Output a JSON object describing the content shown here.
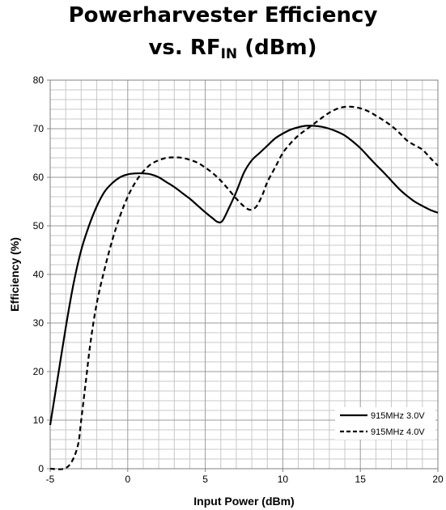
{
  "chart_data": {
    "type": "line",
    "title_line1": "Powerharvester Efficiency",
    "title_line2_main": "vs. RF",
    "title_line2_sub": "IN",
    "title_line2_tail": " (dBm)",
    "xlabel": "Input Power (dBm)",
    "ylabel": "Efficiency (%)",
    "xlim": [
      -5,
      20
    ],
    "ylim": [
      0,
      80
    ],
    "x_ticks": [
      -5,
      0,
      5,
      10,
      15,
      20
    ],
    "y_ticks": [
      0,
      10,
      20,
      30,
      40,
      50,
      60,
      70,
      80
    ],
    "grid": true,
    "legend_position": "bottom-right",
    "series": [
      {
        "name": "915MHz 3.0V",
        "style": "solid",
        "color": "#000000",
        "points": [
          [
            -5,
            9
          ],
          [
            -4.5,
            19
          ],
          [
            -4,
            29
          ],
          [
            -3.5,
            38
          ],
          [
            -3,
            45
          ],
          [
            -2.5,
            50
          ],
          [
            -2,
            54
          ],
          [
            -1.5,
            57
          ],
          [
            -1,
            58.8
          ],
          [
            -0.5,
            60
          ],
          [
            0,
            60.6
          ],
          [
            0.5,
            60.8
          ],
          [
            1,
            60.8
          ],
          [
            1.5,
            60.6
          ],
          [
            2,
            60
          ],
          [
            2.5,
            59
          ],
          [
            3,
            58
          ],
          [
            3.5,
            56.8
          ],
          [
            4,
            55.6
          ],
          [
            4.5,
            54.2
          ],
          [
            5,
            52.8
          ],
          [
            5.5,
            51.5
          ],
          [
            5.8,
            50.8
          ],
          [
            6.1,
            51
          ],
          [
            6.5,
            53.5
          ],
          [
            7,
            57
          ],
          [
            7.5,
            61
          ],
          [
            8,
            63.5
          ],
          [
            8.5,
            65
          ],
          [
            9,
            66.5
          ],
          [
            9.5,
            68
          ],
          [
            10,
            69
          ],
          [
            10.5,
            69.8
          ],
          [
            11,
            70.3
          ],
          [
            11.5,
            70.6
          ],
          [
            12,
            70.6
          ],
          [
            12.5,
            70.4
          ],
          [
            13,
            70
          ],
          [
            13.5,
            69.4
          ],
          [
            14,
            68.6
          ],
          [
            14.5,
            67.4
          ],
          [
            15,
            66
          ],
          [
            15.5,
            64.3
          ],
          [
            16,
            62.6
          ],
          [
            16.5,
            61
          ],
          [
            17,
            59.3
          ],
          [
            17.5,
            57.6
          ],
          [
            18,
            56.2
          ],
          [
            18.5,
            55
          ],
          [
            19,
            54.1
          ],
          [
            19.5,
            53.3
          ],
          [
            20,
            52.7
          ]
        ]
      },
      {
        "name": "915MHz 4.0V",
        "style": "dashed",
        "color": "#000000",
        "points": [
          [
            -5,
            0
          ],
          [
            -4.1,
            0
          ],
          [
            -3.6,
            1.5
          ],
          [
            -3.2,
            5
          ],
          [
            -3,
            10
          ],
          [
            -2.7,
            18
          ],
          [
            -2.4,
            26
          ],
          [
            -2,
            34
          ],
          [
            -1.5,
            41
          ],
          [
            -1,
            47
          ],
          [
            -0.5,
            52
          ],
          [
            0,
            56
          ],
          [
            0.5,
            59
          ],
          [
            1,
            61.2
          ],
          [
            1.5,
            62.7
          ],
          [
            2,
            63.5
          ],
          [
            2.5,
            64
          ],
          [
            3,
            64.1
          ],
          [
            3.5,
            64
          ],
          [
            4,
            63.6
          ],
          [
            4.5,
            63
          ],
          [
            5,
            62
          ],
          [
            5.5,
            60.8
          ],
          [
            6,
            59.3
          ],
          [
            6.5,
            57.5
          ],
          [
            7,
            55.6
          ],
          [
            7.5,
            54
          ],
          [
            7.9,
            53.3
          ],
          [
            8.3,
            54
          ],
          [
            8.7,
            56.5
          ],
          [
            9,
            59
          ],
          [
            9.5,
            62
          ],
          [
            10,
            65
          ],
          [
            10.5,
            67
          ],
          [
            11,
            68.6
          ],
          [
            11.5,
            69.8
          ],
          [
            12,
            71
          ],
          [
            12.5,
            72.2
          ],
          [
            13,
            73.3
          ],
          [
            13.5,
            74.1
          ],
          [
            14,
            74.5
          ],
          [
            14.5,
            74.5
          ],
          [
            15,
            74.2
          ],
          [
            15.5,
            73.6
          ],
          [
            16,
            72.7
          ],
          [
            16.5,
            71.7
          ],
          [
            17,
            70.6
          ],
          [
            17.5,
            69.2
          ],
          [
            18,
            67.6
          ],
          [
            18.5,
            66.6
          ],
          [
            19,
            65.7
          ],
          [
            19.5,
            64
          ],
          [
            20,
            62.4
          ]
        ]
      }
    ]
  }
}
